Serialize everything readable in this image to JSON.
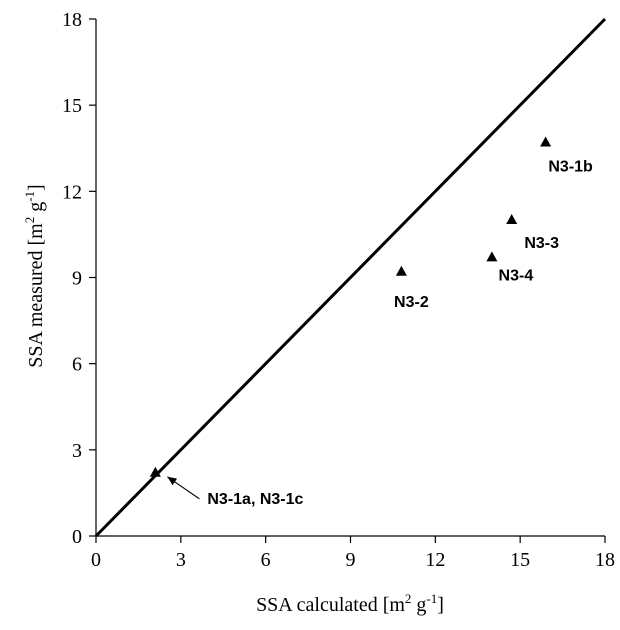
{
  "chart_data": {
    "type": "scatter",
    "title": "",
    "xlabel": {
      "main": "SSA calculated [m",
      "sup1": "2",
      "mid": " g",
      "sup2": "-1",
      "end": "]"
    },
    "ylabel": {
      "main": "SSA measured  [m",
      "sup1": "2",
      "mid": " g",
      "sup2": "-1",
      "end": "]"
    },
    "xlim": [
      0,
      18
    ],
    "ylim": [
      0,
      18
    ],
    "xticks": [
      "0",
      "3",
      "6",
      "9",
      "12",
      "15",
      "18"
    ],
    "yticks": [
      "0",
      "3",
      "6",
      "9",
      "12",
      "15",
      "18"
    ],
    "grid": false,
    "reference_line": {
      "name": "",
      "x": [
        0,
        18
      ],
      "y": [
        0,
        18
      ]
    },
    "points": [
      {
        "x": 2.1,
        "y": 2.2,
        "label": "N3-1a, N3-1c",
        "arrow": true
      },
      {
        "x": 10.8,
        "y": 9.2,
        "label": "N3-2",
        "arrow": false
      },
      {
        "x": 14.0,
        "y": 9.7,
        "label": "N3-4",
        "arrow": false
      },
      {
        "x": 14.7,
        "y": 11.0,
        "label": "N3-3",
        "arrow": false
      },
      {
        "x": 15.9,
        "y": 13.7,
        "label": "N3-1b",
        "arrow": false
      }
    ]
  }
}
